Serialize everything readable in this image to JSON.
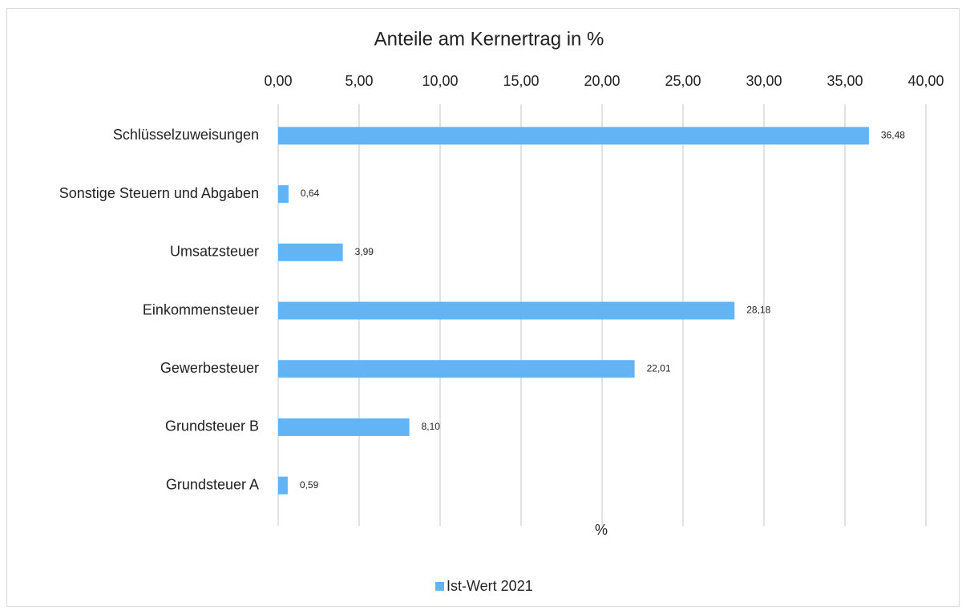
{
  "chart_data": {
    "type": "bar",
    "orientation": "horizontal",
    "title": "Anteile am Kernertrag in %",
    "xlabel": "%",
    "categories": [
      "Schlüsselzuweisungen",
      "Sonstige Steuern und Abgaben",
      "Umsatzsteuer",
      "Einkommensteuer",
      "Gewerbesteuer",
      "Grundsteuer B",
      "Grundsteuer A"
    ],
    "series": [
      {
        "name": "Ist-Wert 2021",
        "color": "#63b4f5",
        "values": [
          36.48,
          0.64,
          3.99,
          28.18,
          22.01,
          8.1,
          0.59
        ],
        "value_labels": [
          "36,48",
          "0,64",
          "3,99",
          "28,18",
          "22,01",
          "8,10",
          "0,59"
        ]
      }
    ],
    "xlim": [
      0,
      40
    ],
    "xticks": [
      {
        "value": 0,
        "label": "0,00"
      },
      {
        "value": 5,
        "label": "5,00"
      },
      {
        "value": 10,
        "label": "10,00"
      },
      {
        "value": 15,
        "label": "15,00"
      },
      {
        "value": 20,
        "label": "20,00"
      },
      {
        "value": 25,
        "label": "25,00"
      },
      {
        "value": 30,
        "label": "30,00"
      },
      {
        "value": 35,
        "label": "35,00"
      },
      {
        "value": 40,
        "label": "40,00"
      }
    ],
    "grid": true,
    "legend": "bottom"
  }
}
